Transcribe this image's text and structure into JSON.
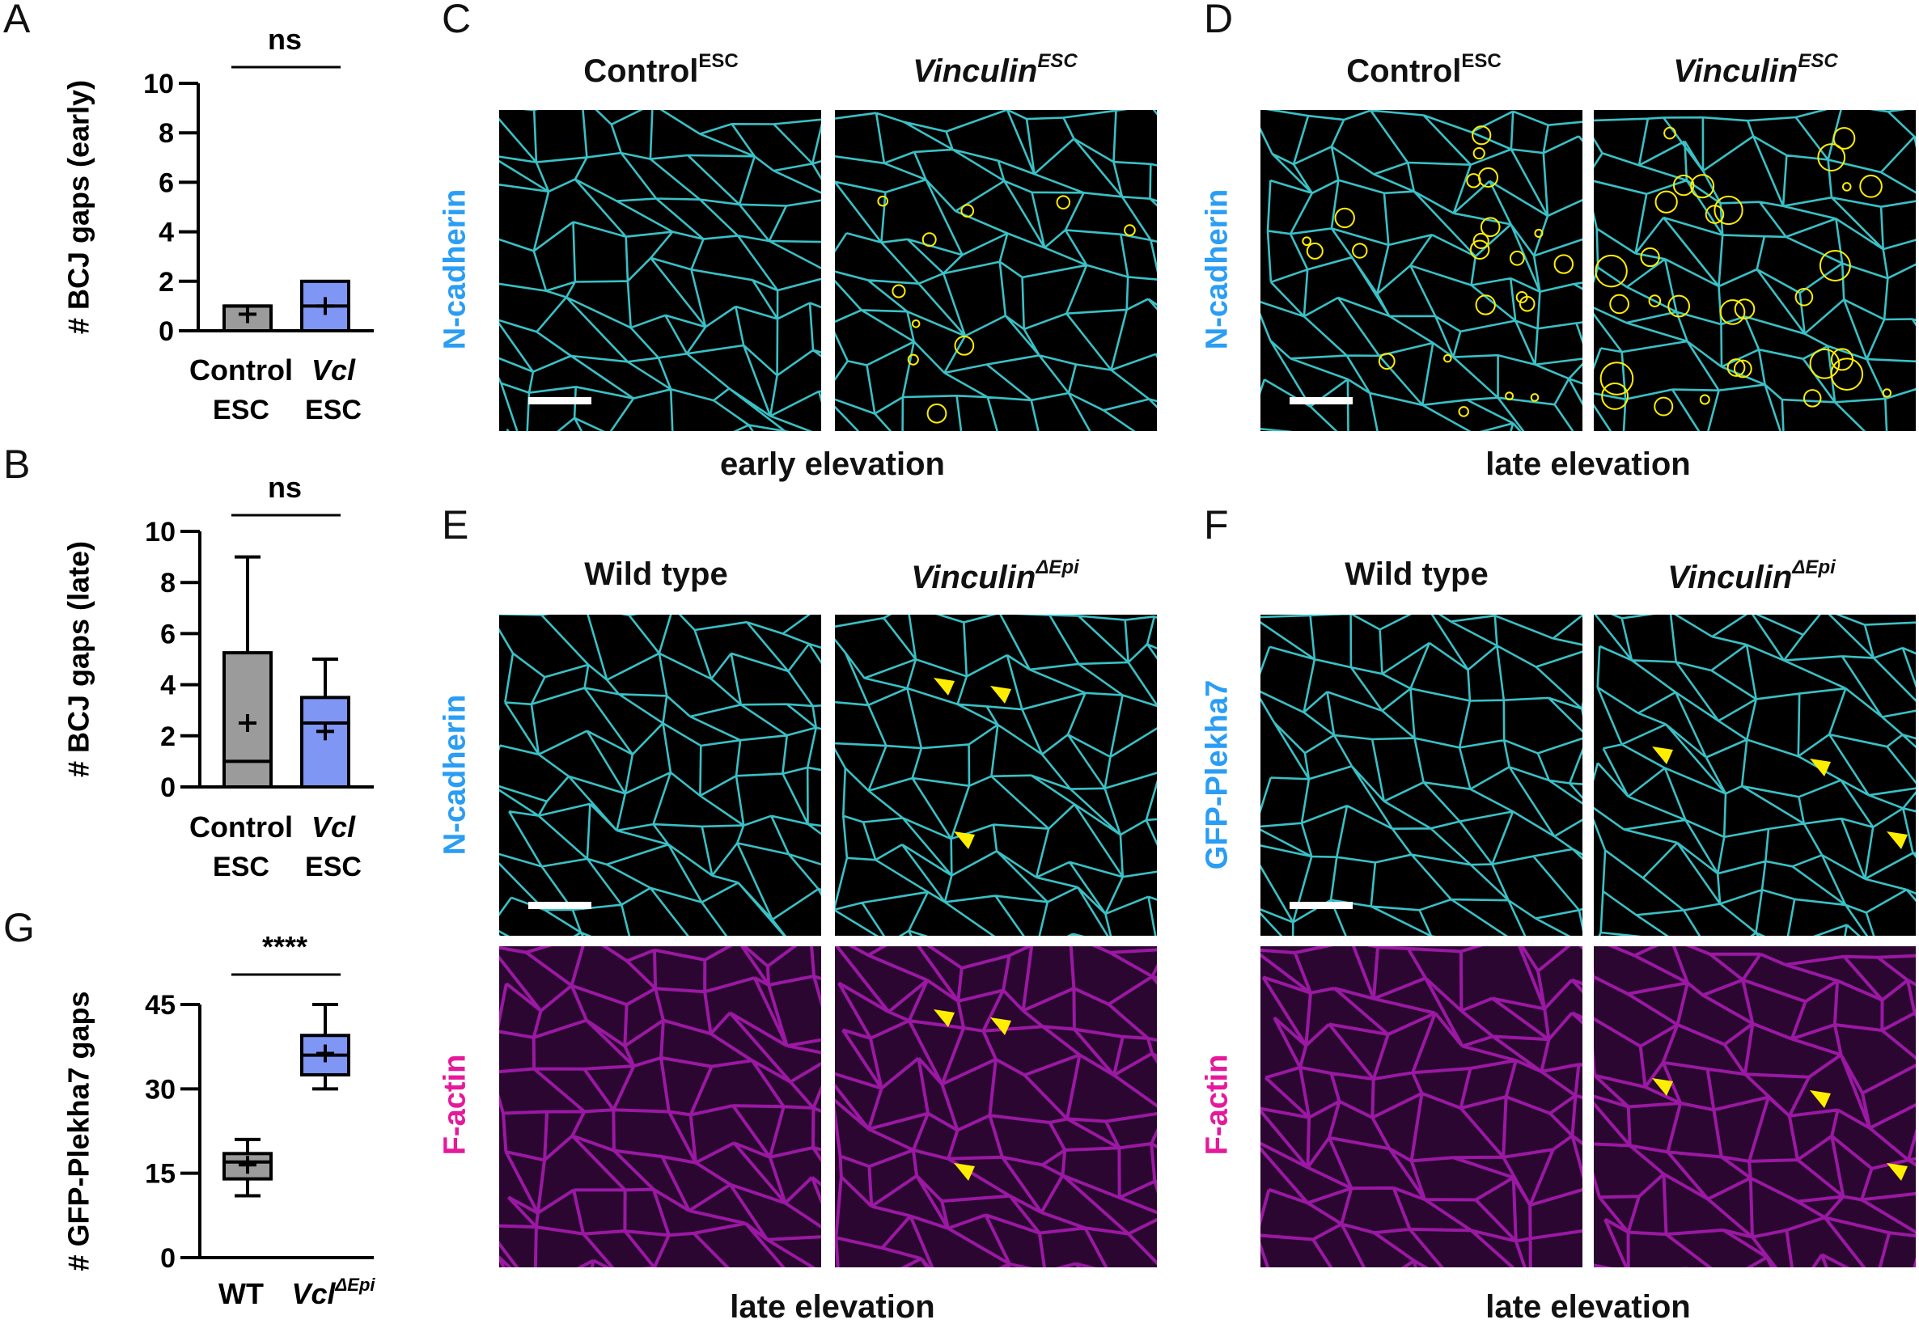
{
  "panel_letters": {
    "A": "A",
    "B": "B",
    "C": "C",
    "D": "D",
    "E": "E",
    "F": "F",
    "G": "G"
  },
  "panel_c": {
    "header_left": "Control",
    "header_left_sup": "ESC",
    "header_right": "Vinculin",
    "header_right_sup": "ESC",
    "stain": "N-cadherin",
    "footer": "early elevation"
  },
  "panel_d": {
    "header_left": "Control",
    "header_left_sup": "ESC",
    "header_right": "Vinculin",
    "header_right_sup": "ESC",
    "stain": "N-cadherin",
    "footer": "late elevation"
  },
  "panel_e": {
    "header_left": "Wild type",
    "header_right": "Vinculin",
    "header_right_sup": "ΔEpi",
    "stain_top": "N-cadherin",
    "stain_bottom": "F-actin",
    "footer": "late elevation"
  },
  "panel_f": {
    "header_left": "Wild type",
    "header_right": "Vinculin",
    "header_right_sup": "ΔEpi",
    "stain_top": "GFP-Plekha7",
    "stain_bottom": "F-actin",
    "footer": "late elevation"
  },
  "colors": {
    "control": "#9b9b9b",
    "vcl": "#7f96f5",
    "cyan": "#3fd6dc",
    "magenta": "#c21fc9",
    "marker": "#ffee00",
    "label_cyan": "#2a9df4",
    "label_magenta": "#e6199b"
  },
  "chart_data": [
    {
      "panel": "A",
      "type": "box",
      "ylabel": "# BCJ gaps (early)",
      "ylim": [
        0,
        10
      ],
      "yticks": [
        "0",
        "2",
        "4",
        "6",
        "8",
        "10"
      ],
      "significance": "ns",
      "categories": [
        {
          "line1": "Control",
          "line2": "ESC",
          "italic": false
        },
        {
          "line1": "Vcl",
          "line2": "ESC",
          "italic": true
        }
      ],
      "series": [
        {
          "name": "Control ESC",
          "min": 0,
          "q1": 0,
          "median": 1,
          "q3": 1,
          "max": 1,
          "mean": 0.67
        },
        {
          "name": "Vcl ESC",
          "min": 0,
          "q1": 0,
          "median": 1,
          "q3": 2,
          "max": 2,
          "mean": 1.0
        }
      ]
    },
    {
      "panel": "B",
      "type": "box",
      "ylabel": "# BCJ gaps (late)",
      "ylim": [
        0,
        10
      ],
      "yticks": [
        "0",
        "2",
        "4",
        "6",
        "8",
        "10"
      ],
      "significance": "ns",
      "categories": [
        {
          "line1": "Control",
          "line2": "ESC",
          "italic": false
        },
        {
          "line1": "Vcl",
          "line2": "ESC",
          "italic": true
        }
      ],
      "series": [
        {
          "name": "Control ESC",
          "min": 0,
          "q1": 0,
          "median": 1,
          "q3": 5.25,
          "max": 9,
          "mean": 2.5
        },
        {
          "name": "Vcl ESC",
          "min": 0,
          "q1": 0,
          "median": 2.5,
          "q3": 3.5,
          "max": 5,
          "mean": 2.17
        }
      ]
    },
    {
      "panel": "G",
      "type": "box",
      "ylabel": "# GFP-Plekha7 gaps",
      "ylim": [
        0,
        45
      ],
      "yticks": [
        "0",
        "15",
        "30",
        "45"
      ],
      "significance": "****",
      "categories": [
        {
          "line1": "WT",
          "line2": "",
          "italic": false
        },
        {
          "line1": "Vcl",
          "sup": "ΔEpi",
          "line2": "",
          "italic": true
        }
      ],
      "series": [
        {
          "name": "WT",
          "min": 11,
          "q1": 14,
          "median": 17,
          "q3": 18.5,
          "max": 21,
          "mean": 16.5
        },
        {
          "name": "Vcl ΔEpi",
          "min": 30,
          "q1": 32.5,
          "median": 36,
          "q3": 39.5,
          "max": 45,
          "mean": 36.3
        }
      ]
    }
  ]
}
